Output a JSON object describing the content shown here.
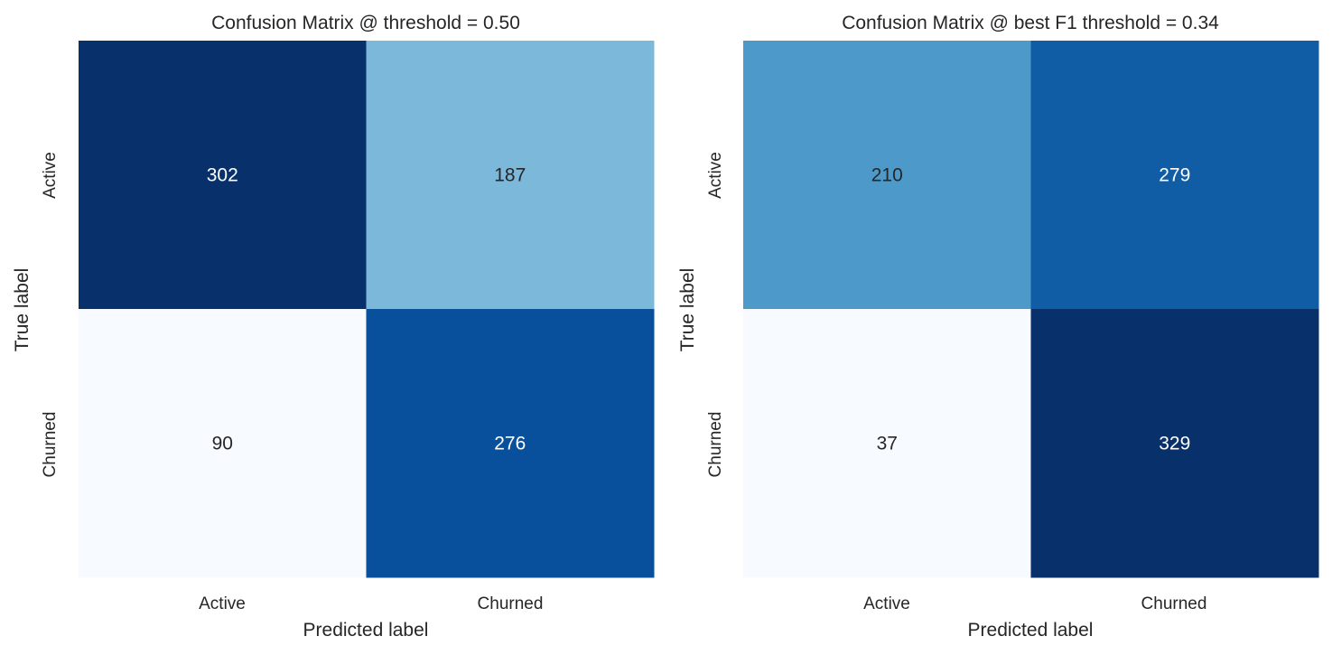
{
  "chart_data": [
    {
      "type": "heatmap",
      "title": "Confusion Matrix @ threshold = 0.50",
      "xlabel": "Predicted label",
      "ylabel": "True label",
      "x_categories": [
        "Active",
        "Churned"
      ],
      "y_categories": [
        "Active",
        "Churned"
      ],
      "values": [
        [
          302,
          187
        ],
        [
          90,
          276
        ]
      ],
      "colormap": "Blues",
      "colorbar": false,
      "grid": false
    },
    {
      "type": "heatmap",
      "title": "Confusion Matrix @ best F1 threshold = 0.34",
      "xlabel": "Predicted label",
      "ylabel": "True label",
      "x_categories": [
        "Active",
        "Churned"
      ],
      "y_categories": [
        "Active",
        "Churned"
      ],
      "values": [
        [
          210,
          279
        ],
        [
          37,
          329
        ]
      ],
      "colormap": "Blues",
      "colorbar": false,
      "grid": false
    }
  ]
}
